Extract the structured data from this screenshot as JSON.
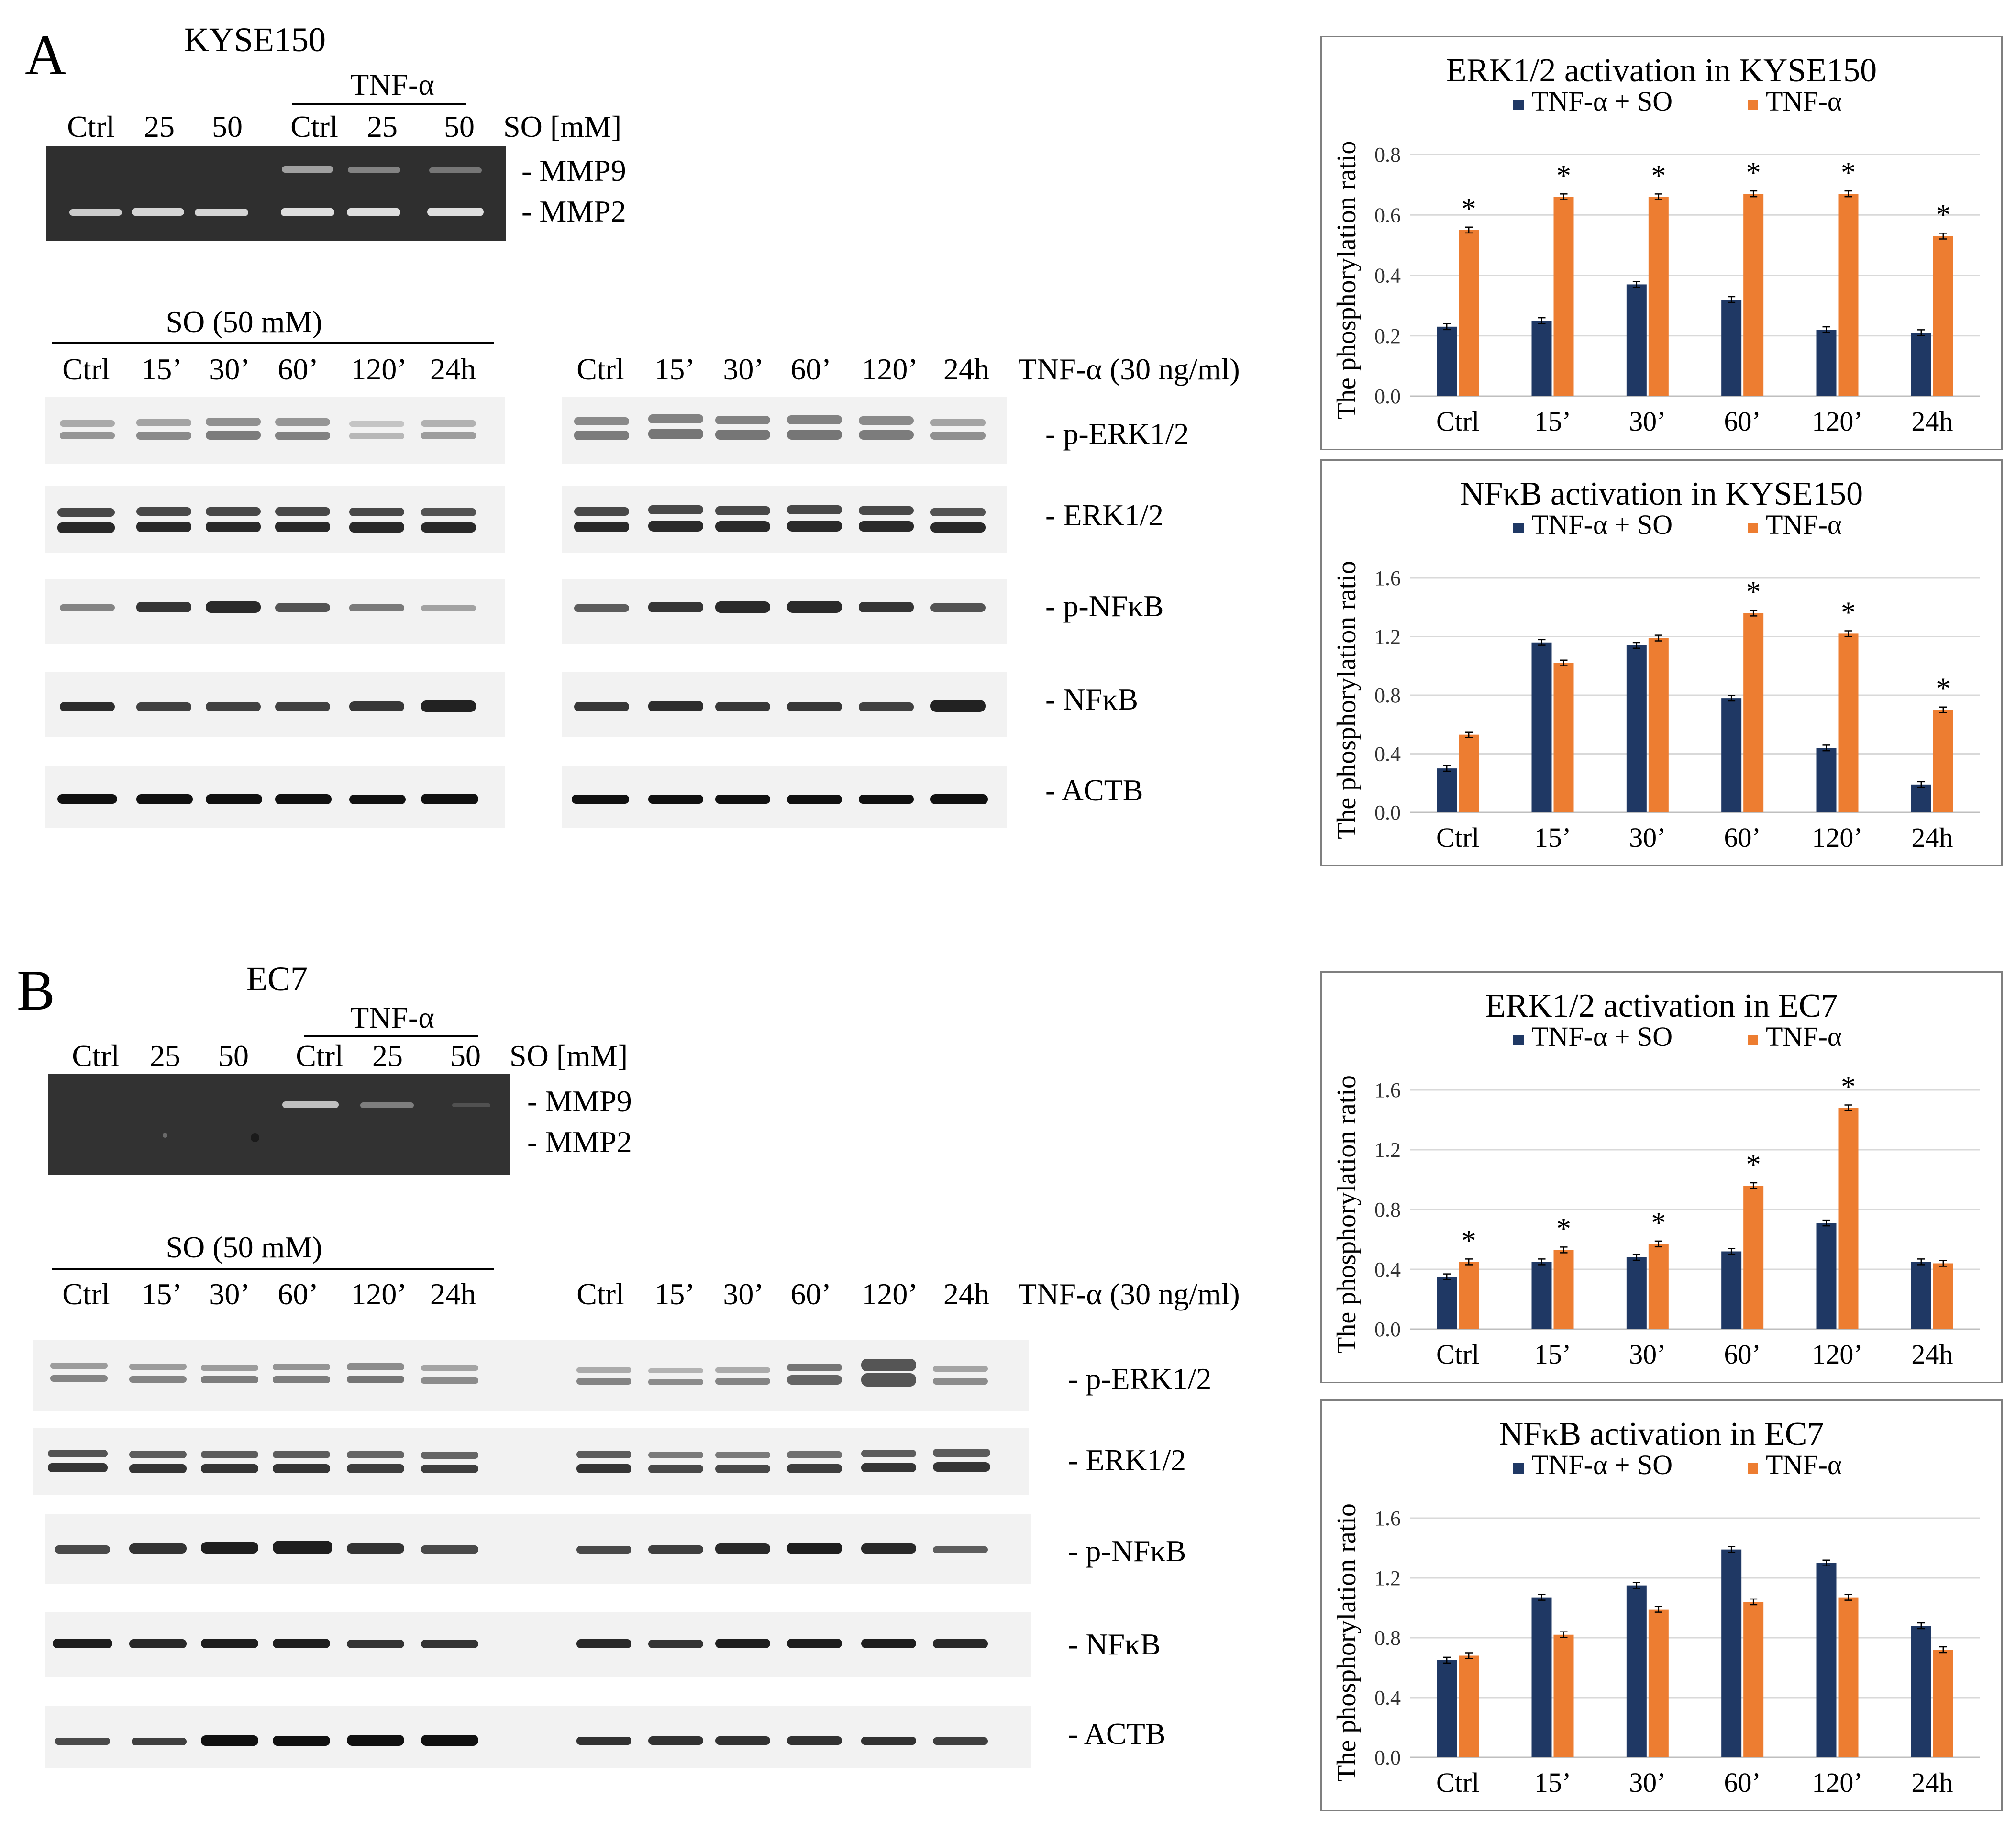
{
  "panels": [
    {
      "letter": "A",
      "cell_line": "KYSE150",
      "zymo": {
        "tnf_header": "TNF-α",
        "lanes": [
          "Ctrl",
          "25",
          "50",
          "Ctrl",
          "25",
          "50"
        ],
        "unit": "SO [mM]",
        "bands": [
          "- MMP9",
          "- MMP2"
        ]
      },
      "western": {
        "left_header": "SO (50 mM)",
        "left_lanes": [
          "Ctrl",
          "15’",
          "30’",
          "60’",
          "120’",
          "24h"
        ],
        "right_lanes": [
          "Ctrl",
          "15’",
          "30’",
          "60’",
          "120’",
          "24h"
        ],
        "right_header": "TNF-α (30 ng/ml)",
        "proteins": [
          "- p-ERK1/2",
          "- ERK1/2",
          "- p-NFκB",
          "- NFκB",
          "- ACTB"
        ]
      }
    },
    {
      "letter": "B",
      "cell_line": "EC7",
      "zymo": {
        "tnf_header": "TNF-α",
        "lanes": [
          "Ctrl",
          "25",
          "50",
          "Ctrl",
          "25",
          "50"
        ],
        "unit": "SO [mM]",
        "bands": [
          "- MMP9",
          "- MMP2"
        ]
      },
      "western": {
        "left_header": "SO (50 mM)",
        "left_lanes": [
          "Ctrl",
          "15’",
          "30’",
          "60’",
          "120’",
          "24h"
        ],
        "right_lanes": [
          "Ctrl",
          "15’",
          "30’",
          "60’",
          "120’",
          "24h"
        ],
        "right_header": "TNF-α (30 ng/ml)",
        "proteins": [
          "- p-ERK1/2",
          "- ERK1/2",
          "- p-NFκB",
          "- NFκB",
          "- ACTB"
        ]
      }
    }
  ],
  "colors": {
    "so_series": "#1f3864",
    "tnf_series": "#ed7d31"
  },
  "chart_data": [
    {
      "type": "bar",
      "title": "ERK1/2 activation in KYSE150",
      "ylabel": "The phosphorylation ratio",
      "categories": [
        "Ctrl",
        "15’",
        "30’",
        "60’",
        "120’",
        "24h"
      ],
      "ylim": [
        0,
        0.8
      ],
      "yticks": [
        "0.0",
        "0.2",
        "0.4",
        "0.6",
        "0.8"
      ],
      "legend_position": "top",
      "series": [
        {
          "name": "TNF-α + SO",
          "values": [
            0.23,
            0.25,
            0.37,
            0.32,
            0.22,
            0.21
          ]
        },
        {
          "name": "TNF-α",
          "values": [
            0.55,
            0.66,
            0.66,
            0.67,
            0.67,
            0.53
          ]
        }
      ],
      "significance": [
        "*",
        "*",
        "*",
        "*",
        "*",
        "*"
      ]
    },
    {
      "type": "bar",
      "title": "NFκB activation in KYSE150",
      "ylabel": "The phosphorylation ratio",
      "categories": [
        "Ctrl",
        "15’",
        "30’",
        "60’",
        "120’",
        "24h"
      ],
      "ylim": [
        0,
        1.6
      ],
      "yticks": [
        "0.0",
        "0.4",
        "0.8",
        "1.2",
        "1.6"
      ],
      "legend_position": "top",
      "series": [
        {
          "name": "TNF-α + SO",
          "values": [
            0.3,
            1.16,
            1.14,
            0.78,
            0.44,
            0.19
          ]
        },
        {
          "name": "TNF-α",
          "values": [
            0.53,
            1.02,
            1.19,
            1.36,
            1.22,
            0.7
          ]
        }
      ],
      "significance": [
        "",
        "",
        "",
        "*",
        "*",
        "*"
      ]
    },
    {
      "type": "bar",
      "title": "ERK1/2 activation in EC7",
      "ylabel": "The phosphorylation ratio",
      "categories": [
        "Ctrl",
        "15’",
        "30’",
        "60’",
        "120’",
        "24h"
      ],
      "ylim": [
        0,
        1.6
      ],
      "yticks": [
        "0.0",
        "0.4",
        "0.8",
        "1.2",
        "1.6"
      ],
      "legend_position": "top",
      "series": [
        {
          "name": "TNF-α + SO",
          "values": [
            0.35,
            0.45,
            0.48,
            0.52,
            0.71,
            0.45
          ]
        },
        {
          "name": "TNF-α",
          "values": [
            0.45,
            0.53,
            0.57,
            0.96,
            1.48,
            0.44
          ]
        }
      ],
      "significance": [
        "*",
        "*",
        "*",
        "*",
        "*",
        ""
      ]
    },
    {
      "type": "bar",
      "title": "NFκB activation in EC7",
      "ylabel": "The phosphorylation ratio",
      "categories": [
        "Ctrl",
        "15’",
        "30’",
        "60’",
        "120’",
        "24h"
      ],
      "ylim": [
        0,
        1.6
      ],
      "yticks": [
        "0.0",
        "0.4",
        "0.8",
        "1.2",
        "1.6"
      ],
      "legend_position": "top",
      "series": [
        {
          "name": "TNF-α + SO",
          "values": [
            0.65,
            1.07,
            1.15,
            1.39,
            1.3,
            0.88
          ]
        },
        {
          "name": "TNF-α",
          "values": [
            0.68,
            0.82,
            0.99,
            1.04,
            1.07,
            0.72
          ]
        }
      ],
      "significance": [
        "",
        "",
        "",
        "",
        "",
        ""
      ]
    }
  ]
}
